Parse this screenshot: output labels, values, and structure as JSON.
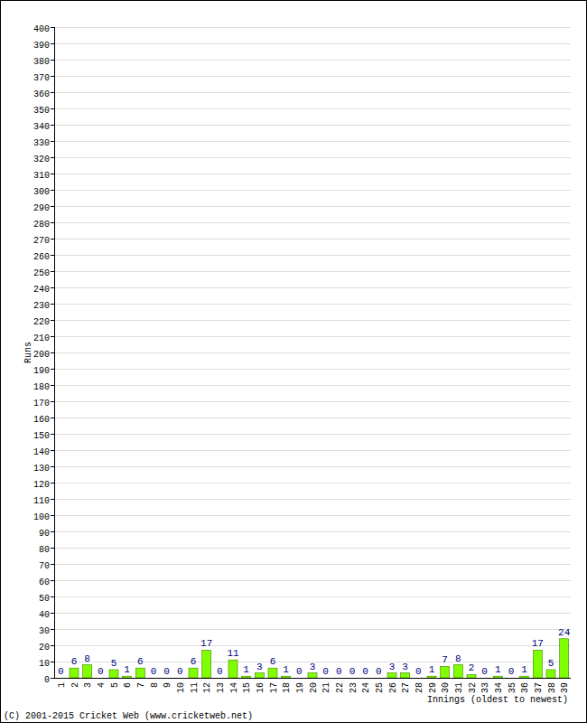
{
  "chart_data": {
    "type": "bar",
    "x_label": "Innings (oldest to newest)",
    "y_label": "Runs",
    "annotations": [
      "(C) 2001-2015 Cricket Web (www.cricketweb.net)"
    ],
    "categories": [
      "1",
      "2",
      "3",
      "4",
      "5",
      "6",
      "7",
      "8",
      "9",
      "10",
      "11",
      "12",
      "13",
      "14",
      "15",
      "16",
      "17",
      "18",
      "19",
      "20",
      "21",
      "22",
      "23",
      "24",
      "25",
      "26",
      "27",
      "28",
      "29",
      "30",
      "31",
      "32",
      "33",
      "34",
      "35",
      "36",
      "37",
      "38",
      "39"
    ],
    "values": [
      0,
      6,
      8,
      0,
      5,
      1,
      6,
      0,
      0,
      0,
      6,
      17,
      0,
      11,
      1,
      3,
      6,
      1,
      0,
      3,
      0,
      0,
      0,
      0,
      0,
      3,
      3,
      0,
      1,
      7,
      8,
      2,
      0,
      1,
      0,
      1,
      17,
      5,
      24
    ],
    "color": "#80ff00",
    "ylim": [
      0,
      400
    ],
    "yticks": [
      0,
      10,
      20,
      30,
      40,
      50,
      60,
      70,
      80,
      90,
      100,
      110,
      120,
      130,
      140,
      150,
      160,
      170,
      180,
      190,
      200,
      210,
      220,
      230,
      240,
      250,
      260,
      270,
      280,
      290,
      300,
      310,
      320,
      330,
      340,
      350,
      360,
      370,
      380,
      390,
      400
    ],
    "grid": true,
    "data_labels": true
  }
}
